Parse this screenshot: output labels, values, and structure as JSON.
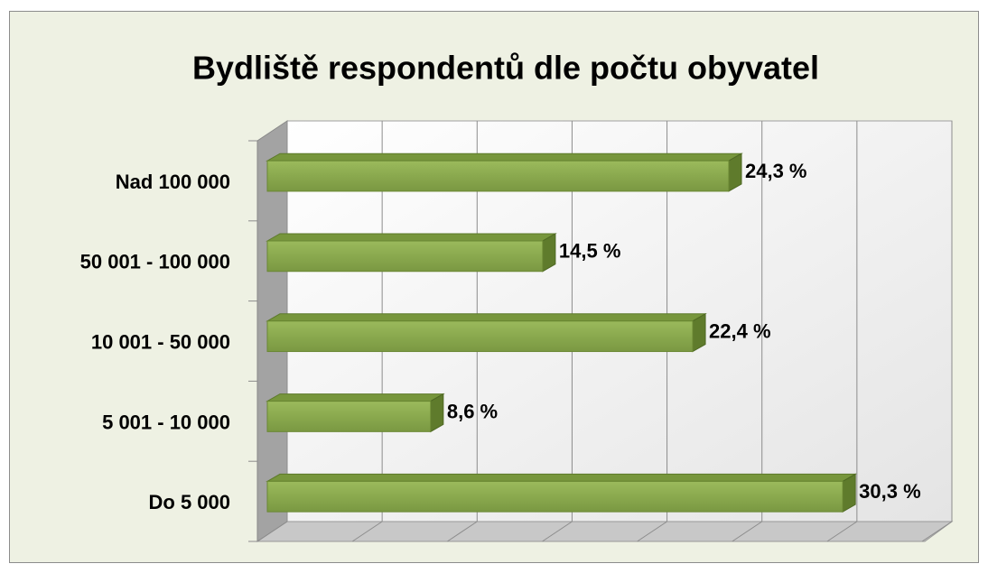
{
  "chart_data": {
    "type": "bar3d",
    "title": "Bydliště respondentů dle počtu obyvatel",
    "categories": [
      "Nad 100 000",
      "50 001 - 100 000",
      "10 001 - 50 000",
      "5 001 - 10 000",
      "Do 5 000"
    ],
    "values": [
      24.3,
      14.5,
      22.4,
      8.6,
      30.3
    ],
    "value_labels": [
      "24,3 %",
      "14,5 %",
      "22,4 %",
      "8,6 %",
      "30,3 %"
    ],
    "color": "#8aa94e",
    "xlim": [
      0,
      35
    ],
    "xticks": [
      0,
      5,
      10,
      15,
      20,
      25,
      30,
      35
    ],
    "grid": true
  }
}
